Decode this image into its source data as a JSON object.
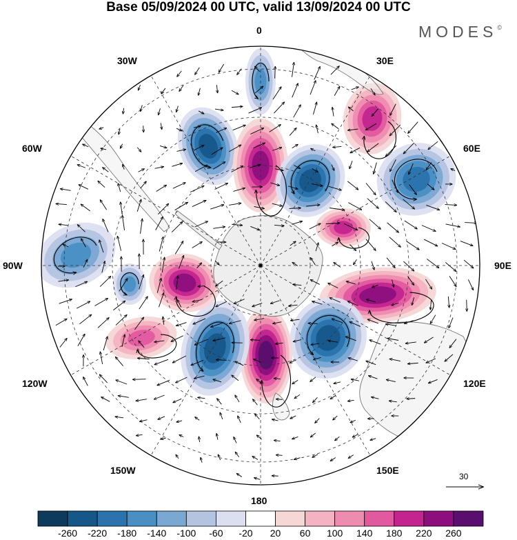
{
  "title": "Base 05/09/2024 00 UTC, valid 13/09/2024 00 UTC",
  "logo": "MODES",
  "logo_mark": "©",
  "longitude_labels": {
    "lon_0": "0",
    "lon_30e": "30E",
    "lon_60e": "60E",
    "lon_90e": "90E",
    "lon_120e": "120E",
    "lon_150e": "150E",
    "lon_180": "180",
    "lon_150w": "150W",
    "lon_120w": "120W",
    "lon_90w": "90W",
    "lon_60w": "60W",
    "lon_30w": "30W"
  },
  "vector_reference": {
    "label": "30"
  },
  "colorbar": {
    "ticks": [
      "-260",
      "-220",
      "-180",
      "-140",
      "-100",
      "-60",
      "-20",
      "20",
      "60",
      "100",
      "140",
      "180",
      "220",
      "260"
    ],
    "colors": [
      "#0d3b5e",
      "#16578a",
      "#2a73ad",
      "#4a8fc4",
      "#7aa8d3",
      "#b3c3e0",
      "#dcdff0",
      "#ffffff",
      "#f7d6d6",
      "#f4b3c2",
      "#ee8cb0",
      "#e15aa0",
      "#c3248f",
      "#8c0f7d",
      "#5a0f6e"
    ]
  },
  "anomalies": [
    {
      "name": "blue-0",
      "value": -140
    },
    {
      "name": "blue-30w",
      "value": -220
    },
    {
      "name": "pink-10w",
      "value": 220
    },
    {
      "name": "blue-25e",
      "value": -220
    },
    {
      "name": "pink-35e",
      "value": 180
    },
    {
      "name": "blue-60e",
      "value": -180
    },
    {
      "name": "pink-75e",
      "value": 180
    },
    {
      "name": "pink-100e",
      "value": 220
    },
    {
      "name": "blue-135e",
      "value": -220
    },
    {
      "name": "pink-175e",
      "value": 260
    },
    {
      "name": "blue-160w",
      "value": -220
    },
    {
      "name": "pink-100w",
      "value": 220
    },
    {
      "name": "blue-110w",
      "value": -140
    },
    {
      "name": "pink-130w",
      "value": 140
    },
    {
      "name": "blue-85w",
      "value": -140
    }
  ]
}
